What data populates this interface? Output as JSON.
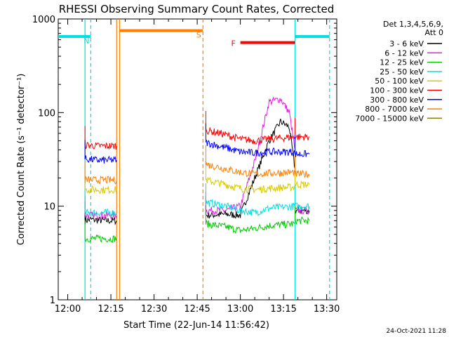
{
  "chart_data": {
    "type": "line",
    "title": "RHESSI Observing Summary Count Rates, Corrected",
    "xlabel": "Start Time (22-Jun-14 11:56:42)",
    "ylabel": "Corrected Count Rate (s⁻¹ detector⁻¹)",
    "yscale": "log",
    "ylim": [
      1,
      1000
    ],
    "xlim": [
      "11:56:42",
      "13:33:30"
    ],
    "x_ticks": [
      "12:00",
      "12:15",
      "12:30",
      "12:45",
      "13:00",
      "13:15",
      "13:30"
    ],
    "y_ticks": [
      "1",
      "10",
      "100",
      "1000"
    ],
    "legend": {
      "placement": "right",
      "header": [
        "Det 1,3,4,5,6,9,",
        "Att 0"
      ],
      "entries": [
        {
          "label": "3 - 6 keV",
          "color": "#000000"
        },
        {
          "label": "6 - 12 keV",
          "color": "#e020e0"
        },
        {
          "label": "12 - 25 keV",
          "color": "#00cc00"
        },
        {
          "label": "25 - 50 keV",
          "color": "#00e0e0"
        },
        {
          "label": "50 - 100 keV",
          "color": "#d8c800"
        },
        {
          "label": "100 - 300 keV",
          "color": "#ff0000"
        },
        {
          "label": "300 - 800 keV",
          "color": "#0000ff"
        },
        {
          "label": "800 - 7000 keV",
          "color": "#ff7f00"
        },
        {
          "label": "7000 - 15000 keV",
          "color": "#7f7f00"
        }
      ]
    },
    "series": [
      {
        "name": "3 - 6 keV",
        "color": "#000000",
        "segments": [
          {
            "x": [
              "12:06",
              "12:08",
              "12:10",
              "12:13",
              "12:17"
            ],
            "y": [
              7,
              7.2,
              7.1,
              7,
              7
            ]
          },
          {
            "x": [
              "12:48",
              "12:55",
              "13:00",
              "13:05",
              "13:10",
              "13:14",
              "13:17",
              "13:19"
            ],
            "y": [
              8,
              8.2,
              8,
              20,
              50,
              80,
              70,
              25
            ]
          },
          {
            "x": [
              "13:19",
              "13:24"
            ],
            "y": [
              9,
              9
            ]
          }
        ]
      },
      {
        "name": "6 - 12 keV",
        "color": "#e020e0",
        "segments": [
          {
            "x": [
              "12:06",
              "12:10",
              "12:17"
            ],
            "y": [
              8,
              8,
              8
            ]
          },
          {
            "x": [
              "12:48",
              "12:55",
              "13:00",
              "13:05",
              "13:10",
              "13:14",
              "13:17",
              "13:19"
            ],
            "y": [
              9,
              9,
              10,
              30,
              130,
              140,
              100,
              40
            ]
          },
          {
            "x": [
              "13:19",
              "13:24"
            ],
            "y": [
              9,
              9
            ]
          }
        ]
      },
      {
        "name": "12 - 25 keV",
        "color": "#00cc00",
        "segments": [
          {
            "x": [
              "12:06",
              "12:10",
              "12:17"
            ],
            "y": [
              4.5,
              4.5,
              4.5
            ]
          },
          {
            "x": [
              "12:48",
              "12:55",
              "13:00",
              "13:05",
              "13:10",
              "13:19"
            ],
            "y": [
              6.5,
              6,
              5.5,
              5.8,
              6.2,
              6.5
            ]
          },
          {
            "x": [
              "13:19",
              "13:24"
            ],
            "y": [
              7,
              7
            ]
          }
        ]
      },
      {
        "name": "25 - 50 keV",
        "color": "#00e0e0",
        "segments": [
          {
            "x": [
              "12:06",
              "12:10",
              "12:17"
            ],
            "y": [
              8.5,
              8.5,
              8.5
            ]
          },
          {
            "x": [
              "12:48",
              "12:55",
              "13:00",
              "13:05",
              "13:10",
              "13:19"
            ],
            "y": [
              11,
              10,
              9,
              8.5,
              9.5,
              10
            ]
          },
          {
            "x": [
              "13:19",
              "13:24"
            ],
            "y": [
              10,
              10
            ]
          }
        ]
      },
      {
        "name": "50 - 100 keV",
        "color": "#d8c800",
        "segments": [
          {
            "x": [
              "12:06",
              "12:10",
              "12:17"
            ],
            "y": [
              15,
              15,
              15
            ]
          },
          {
            "x": [
              "12:48",
              "12:55",
              "13:00",
              "13:05",
              "13:10",
              "13:19"
            ],
            "y": [
              19,
              17,
              15.5,
              15,
              15.5,
              16
            ]
          },
          {
            "x": [
              "13:19",
              "13:24"
            ],
            "y": [
              17,
              17
            ]
          }
        ]
      },
      {
        "name": "100 - 300 keV",
        "color": "#ff0000",
        "segments": [
          {
            "x": [
              "12:06",
              "12:10",
              "12:17"
            ],
            "y": [
              45,
              44,
              44
            ]
          },
          {
            "x": [
              "12:48",
              "12:55",
              "13:00",
              "13:05",
              "13:10",
              "13:19"
            ],
            "y": [
              65,
              58,
              52,
              50,
              52,
              55
            ]
          },
          {
            "x": [
              "13:19",
              "13:24"
            ],
            "y": [
              55,
              55
            ]
          }
        ]
      },
      {
        "name": "300 - 800 keV",
        "color": "#0000ff",
        "segments": [
          {
            "x": [
              "12:06",
              "12:10",
              "12:17"
            ],
            "y": [
              32,
              31,
              31
            ]
          },
          {
            "x": [
              "12:48",
              "12:55",
              "13:00",
              "13:05",
              "13:10",
              "13:19"
            ],
            "y": [
              48,
              42,
              38,
              37,
              38,
              38
            ]
          },
          {
            "x": [
              "13:19",
              "13:24"
            ],
            "y": [
              36,
              36
            ]
          }
        ]
      },
      {
        "name": "800 - 7000 keV",
        "color": "#ff7f00",
        "segments": [
          {
            "x": [
              "12:06",
              "12:10",
              "12:17"
            ],
            "y": [
              19,
              19,
              19
            ]
          },
          {
            "x": [
              "12:48",
              "12:55",
              "13:00",
              "13:05",
              "13:10",
              "13:19"
            ],
            "y": [
              28,
              25,
              23,
              22,
              22.5,
              23
            ]
          },
          {
            "x": [
              "13:19",
              "13:24"
            ],
            "y": [
              22,
              22
            ]
          }
        ]
      }
    ],
    "markers": [
      {
        "label": "N",
        "color": "#00e0e0",
        "line_style": "dashed",
        "x": "12:08",
        "y": 650
      },
      {
        "label": "S",
        "color": "#ff7f00",
        "line_style": "dashed",
        "x": "12:47",
        "y": 750
      },
      {
        "label": "F",
        "color": "#ff0000",
        "line_style": "solid",
        "x": "13:00",
        "y": 560
      }
    ],
    "intervals": [
      {
        "color": "#00e0e0",
        "style": "dashed",
        "x": "12:08"
      },
      {
        "color": "#00e0e0",
        "style": "solid",
        "x": "12:06"
      },
      {
        "color": "#ff7f00",
        "style": "solid",
        "x": "12:17"
      },
      {
        "color": "#ff7f00",
        "style": "solid",
        "x": "12:18"
      },
      {
        "color": "#ff7f00",
        "style": "dashed",
        "x": "12:47"
      },
      {
        "color": "#00e0e0",
        "style": "solid",
        "x": "13:19"
      },
      {
        "color": "#00e0e0",
        "style": "dashed",
        "x": "13:31"
      }
    ],
    "bars": [
      {
        "color": "#00e0e0",
        "x": [
          "11:56:42",
          "12:08"
        ],
        "y": 650
      },
      {
        "color": "#ff7f00",
        "x": [
          "12:18",
          "12:47"
        ],
        "y": 750
      },
      {
        "color": "#ff0000",
        "x": [
          "13:00",
          "13:19"
        ],
        "y": 560
      },
      {
        "color": "#00e0e0",
        "x": [
          "13:19",
          "13:31"
        ],
        "y": 650
      }
    ]
  },
  "footer": {
    "timestamp": "24-Oct-2021 11:28"
  }
}
